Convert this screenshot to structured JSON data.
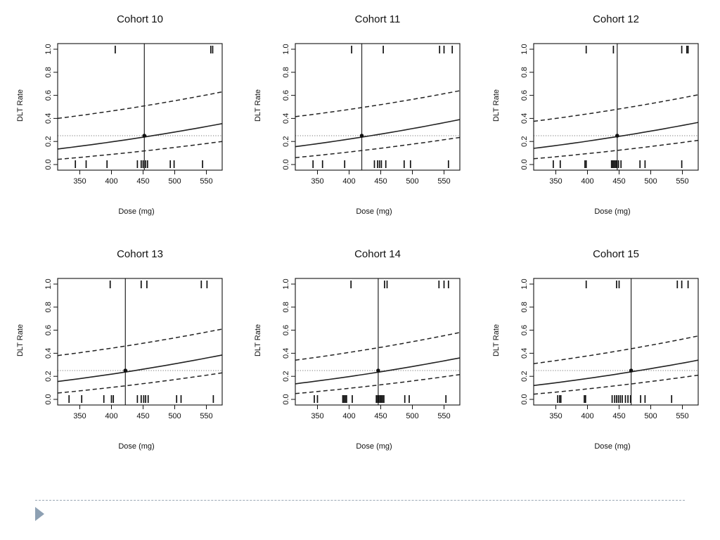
{
  "chart_data": [
    {
      "type": "line",
      "title": "Cohort 10",
      "xlabel": "Dose (mg)",
      "ylabel": "DLT Rate",
      "xlim": [
        315,
        575
      ],
      "ylim": [
        0,
        1
      ],
      "xticks": [
        350,
        400,
        450,
        500,
        550
      ],
      "yticks": [
        0.0,
        0.2,
        0.4,
        0.6,
        0.8,
        1.0
      ],
      "target_rate": 0.25,
      "selected_dose": 452,
      "x": [
        315,
        575
      ],
      "series": [
        {
          "style": "solid",
          "values": [
            0.135,
            0.355
          ]
        },
        {
          "style": "dashed",
          "values": [
            0.4,
            0.63
          ]
        },
        {
          "style": "dashed",
          "values": [
            0.045,
            0.2
          ]
        }
      ],
      "rug_top": [
        406,
        557,
        560
      ],
      "rug_bottom": [
        343,
        360,
        393,
        441,
        447,
        450,
        454,
        457,
        493,
        499,
        544
      ]
    },
    {
      "type": "line",
      "title": "Cohort 11",
      "xlabel": "Dose (mg)",
      "ylabel": "DLT Rate",
      "xlim": [
        315,
        575
      ],
      "ylim": [
        0,
        1
      ],
      "xticks": [
        350,
        400,
        450,
        500,
        550
      ],
      "yticks": [
        0.0,
        0.2,
        0.4,
        0.6,
        0.8,
        1.0
      ],
      "target_rate": 0.25,
      "selected_dose": 420,
      "x": [
        315,
        575
      ],
      "series": [
        {
          "style": "solid",
          "values": [
            0.155,
            0.39
          ]
        },
        {
          "style": "dashed",
          "values": [
            0.415,
            0.64
          ]
        },
        {
          "style": "dashed",
          "values": [
            0.06,
            0.235
          ]
        }
      ],
      "rug_top": [
        404,
        454,
        543,
        550,
        563
      ],
      "rug_bottom": [
        343,
        358,
        393,
        440,
        445,
        448,
        451,
        458,
        487,
        497,
        557
      ]
    },
    {
      "type": "line",
      "title": "Cohort 12",
      "xlabel": "Dose (mg)",
      "ylabel": "DLT Rate",
      "xlim": [
        315,
        575
      ],
      "ylim": [
        0,
        1
      ],
      "xticks": [
        350,
        400,
        450,
        500,
        550
      ],
      "yticks": [
        0.0,
        0.2,
        0.4,
        0.6,
        0.8,
        1.0
      ],
      "target_rate": 0.25,
      "selected_dose": 447,
      "x": [
        315,
        575
      ],
      "series": [
        {
          "style": "solid",
          "values": [
            0.14,
            0.365
          ]
        },
        {
          "style": "dashed",
          "values": [
            0.375,
            0.605
          ]
        },
        {
          "style": "dashed",
          "values": [
            0.05,
            0.21
          ]
        }
      ],
      "rug_top": [
        398,
        441,
        549,
        557,
        559
      ],
      "rug_bottom": [
        346,
        357,
        396,
        398,
        438,
        440,
        442,
        444,
        446,
        449,
        453,
        483,
        491,
        549
      ]
    },
    {
      "type": "line",
      "title": "Cohort 13",
      "xlabel": "Dose (mg)",
      "ylabel": "DLT Rate",
      "xlim": [
        315,
        575
      ],
      "ylim": [
        0,
        1
      ],
      "xticks": [
        350,
        400,
        450,
        500,
        550
      ],
      "yticks": [
        0.0,
        0.2,
        0.4,
        0.6,
        0.8,
        1.0
      ],
      "target_rate": 0.25,
      "selected_dose": 422,
      "x": [
        315,
        575
      ],
      "series": [
        {
          "style": "solid",
          "values": [
            0.155,
            0.385
          ]
        },
        {
          "style": "dashed",
          "values": [
            0.38,
            0.61
          ]
        },
        {
          "style": "dashed",
          "values": [
            0.055,
            0.23
          ]
        }
      ],
      "rug_top": [
        398,
        447,
        456,
        542,
        551
      ],
      "rug_bottom": [
        333,
        353,
        388,
        400,
        403,
        441,
        447,
        451,
        454,
        458,
        503,
        510,
        561
      ]
    },
    {
      "type": "line",
      "title": "Cohort 14",
      "xlabel": "Dose (mg)",
      "ylabel": "DLT Rate",
      "xlim": [
        315,
        575
      ],
      "ylim": [
        0,
        1
      ],
      "xticks": [
        350,
        400,
        450,
        500,
        550
      ],
      "yticks": [
        0.0,
        0.2,
        0.4,
        0.6,
        0.8,
        1.0
      ],
      "target_rate": 0.25,
      "selected_dose": 446,
      "x": [
        315,
        575
      ],
      "series": [
        {
          "style": "solid",
          "values": [
            0.135,
            0.36
          ]
        },
        {
          "style": "dashed",
          "values": [
            0.34,
            0.58
          ]
        },
        {
          "style": "dashed",
          "values": [
            0.05,
            0.215
          ]
        }
      ],
      "rug_top": [
        403,
        456,
        460,
        542,
        550,
        557
      ],
      "rug_bottom": [
        345,
        350,
        390,
        392,
        394,
        396,
        405,
        443,
        445,
        447,
        449,
        451,
        453,
        455,
        488,
        495,
        553
      ]
    },
    {
      "type": "line",
      "title": "Cohort 15",
      "xlabel": "Dose (mg)",
      "ylabel": "DLT Rate",
      "xlim": [
        315,
        575
      ],
      "ylim": [
        0,
        1
      ],
      "xticks": [
        350,
        400,
        450,
        500,
        550
      ],
      "yticks": [
        0.0,
        0.2,
        0.4,
        0.6,
        0.8,
        1.0
      ],
      "target_rate": 0.25,
      "selected_dose": 469,
      "x": [
        315,
        575
      ],
      "series": [
        {
          "style": "solid",
          "values": [
            0.12,
            0.34
          ]
        },
        {
          "style": "dashed",
          "values": [
            0.31,
            0.55
          ]
        },
        {
          "style": "dashed",
          "values": [
            0.045,
            0.21
          ]
        }
      ],
      "rug_top": [
        398,
        446,
        450,
        542,
        549,
        559
      ],
      "rug_bottom": [
        353,
        356,
        358,
        395,
        397,
        439,
        443,
        446,
        449,
        452,
        455,
        460,
        464,
        468,
        484,
        491,
        533
      ]
    }
  ]
}
